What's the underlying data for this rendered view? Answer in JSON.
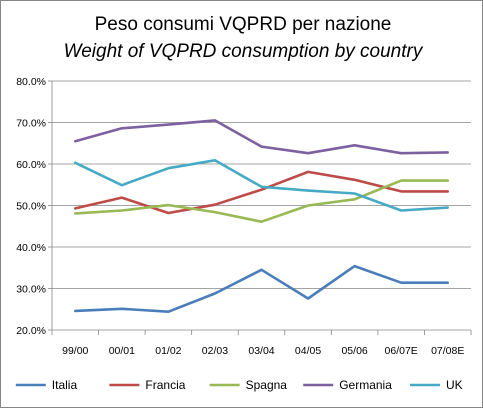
{
  "chart_data": {
    "type": "line",
    "title": "Peso consumi VQPRD per nazione",
    "subtitle": "Weight of VQPRD consumption by country",
    "categories": [
      "99/00",
      "00/01",
      "01/02",
      "02/03",
      "03/04",
      "04/05",
      "05/06",
      "06/07E",
      "07/08E"
    ],
    "y_ticks": [
      "20.0%",
      "30.0%",
      "40.0%",
      "50.0%",
      "60.0%",
      "70.0%",
      "80.0%"
    ],
    "ylim": [
      0.2,
      0.8
    ],
    "grid": true,
    "legend_position": "bottom",
    "series": [
      {
        "name": "Italia",
        "color": "#4a7ebb",
        "values": [
          0.246,
          0.251,
          0.244,
          0.288,
          0.345,
          0.276,
          0.354,
          0.314,
          0.314
        ]
      },
      {
        "name": "Francia",
        "color": "#be4b48",
        "values": [
          0.493,
          0.519,
          0.482,
          0.502,
          0.538,
          0.581,
          0.562,
          0.534,
          0.534
        ]
      },
      {
        "name": "Spagna",
        "color": "#98b954",
        "values": [
          0.481,
          0.488,
          0.501,
          0.484,
          0.461,
          0.5,
          0.515,
          0.56,
          0.56
        ]
      },
      {
        "name": "Germania",
        "color": "#7d60a0",
        "values": [
          0.655,
          0.686,
          0.695,
          0.705,
          0.642,
          0.626,
          0.645,
          0.626,
          0.628
        ]
      },
      {
        "name": "UK",
        "color": "#46aac5",
        "values": [
          0.603,
          0.549,
          0.59,
          0.609,
          0.545,
          0.536,
          0.529,
          0.488,
          0.495
        ]
      }
    ]
  }
}
